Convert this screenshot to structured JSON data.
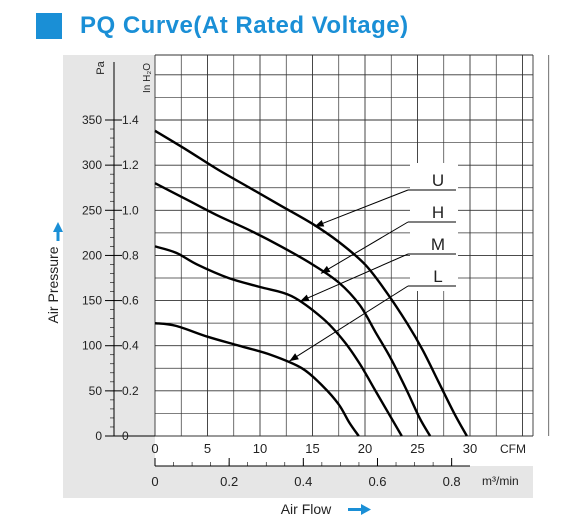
{
  "title": "PQ Curve(At Rated Voltage)",
  "colors": {
    "accent": "#1a8fd6",
    "panel": "#e6e6e6",
    "grid": "#000000"
  },
  "chart_data": {
    "type": "line",
    "title": "PQ Curve(At Rated Voltage)",
    "xlabel": "Air Flow",
    "ylabel": "Air Pressure",
    "x_unit": "CFM",
    "x_unit_secondary": "m³/min",
    "y_unit": "Pa",
    "y_unit_secondary": "In H₂O",
    "xlim": [
      0,
      30
    ],
    "ylim": [
      0,
      400
    ],
    "x_ticks": [
      "0",
      "5",
      "10",
      "15",
      "20",
      "25",
      "30"
    ],
    "x_ticks_secondary": [
      "0",
      "0.2",
      "0.4",
      "0.6",
      "0.8"
    ],
    "y_ticks": [
      "0",
      "50",
      "100",
      "150",
      "200",
      "250",
      "300",
      "350"
    ],
    "y_ticks_secondary": [
      "0",
      "0.2",
      "0.4",
      "0.6",
      "0.8",
      "1.0",
      "1.2",
      "1.4"
    ],
    "grid": true,
    "series": [
      {
        "name": "U",
        "x": [
          0,
          3,
          6,
          9,
          12,
          15,
          17.5,
          20,
          22,
          24,
          25.5,
          27,
          28.5,
          29.7
        ],
        "y": [
          338,
          317,
          295,
          275,
          255,
          235,
          215,
          190,
          160,
          125,
          95,
          60,
          25,
          0
        ]
      },
      {
        "name": "H",
        "x": [
          0,
          3,
          6,
          9,
          12,
          15,
          17.5,
          19.5,
          21,
          22.5,
          24,
          25.2,
          26.2
        ],
        "y": [
          280,
          262,
          244,
          228,
          210,
          190,
          170,
          145,
          115,
          85,
          50,
          20,
          0
        ]
      },
      {
        "name": "M",
        "x": [
          0,
          2,
          4,
          7,
          10,
          13,
          16,
          18,
          19.5,
          21,
          22.5,
          23.5
        ],
        "y": [
          210,
          203,
          190,
          175,
          165,
          155,
          130,
          105,
          80,
          50,
          20,
          0
        ]
      },
      {
        "name": "L",
        "x": [
          0,
          2,
          5,
          8,
          11,
          14,
          16,
          17.5,
          18.5,
          19.4
        ],
        "y": [
          125,
          122,
          110,
          100,
          90,
          75,
          55,
          35,
          15,
          0
        ]
      }
    ],
    "labels": [
      "U",
      "H",
      "M",
      "L"
    ]
  }
}
